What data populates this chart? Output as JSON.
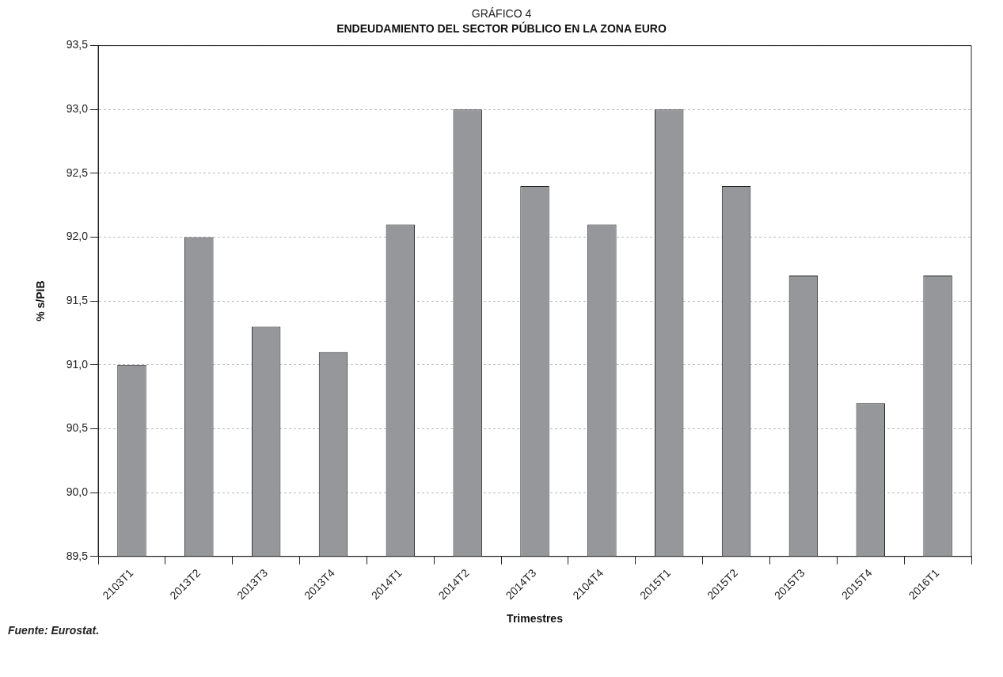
{
  "chart_data": {
    "type": "bar",
    "title": "GRÁFICO 4",
    "subtitle": "ENDEUDAMIENTO DEL SECTOR PÚBLICO EN LA ZONA EURO",
    "xlabel": "Trimestres",
    "ylabel": "% s/PIB",
    "categories": [
      "2103T1",
      "2013T2",
      "2013T3",
      "2013T4",
      "2014T1",
      "2014T2",
      "2014T3",
      "2104T4",
      "2015T1",
      "2015T2",
      "2015T3",
      "2015T4",
      "2016T1"
    ],
    "values": [
      91.0,
      92.0,
      91.3,
      91.1,
      92.1,
      93.0,
      92.4,
      92.1,
      93.0,
      92.4,
      91.7,
      90.7,
      91.7
    ],
    "color": "#96979b",
    "ylim": [
      89.5,
      93.5
    ],
    "yticks": [
      {
        "value": 89.5,
        "label": "89,5"
      },
      {
        "value": 90.0,
        "label": "90,0"
      },
      {
        "value": 90.5,
        "label": "90,5"
      },
      {
        "value": 91.0,
        "label": "91,0"
      },
      {
        "value": 91.5,
        "label": "91,5"
      },
      {
        "value": 92.0,
        "label": "92,0"
      },
      {
        "value": 92.5,
        "label": "92,5"
      },
      {
        "value": 93.0,
        "label": "93,0"
      },
      {
        "value": 93.5,
        "label": "93,5"
      }
    ],
    "grid": "y",
    "legend": false,
    "annotations": [
      "Fuente: Eurostat."
    ]
  }
}
